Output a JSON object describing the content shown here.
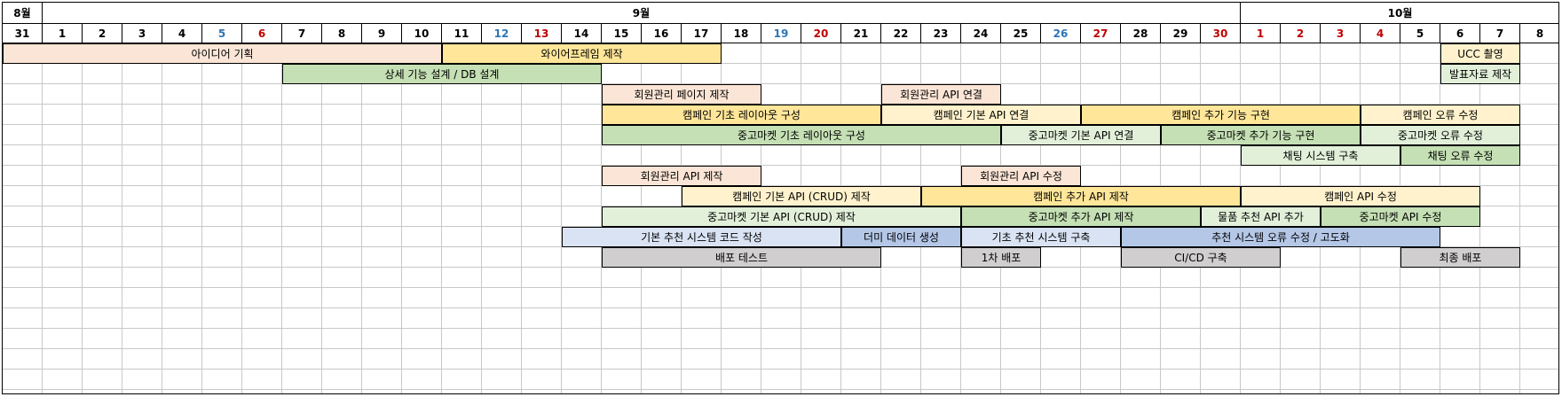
{
  "months": [
    {
      "label": "8월",
      "start": 0,
      "span": 1
    },
    {
      "label": "9월",
      "start": 1,
      "span": 30
    },
    {
      "label": "10월",
      "start": 31,
      "span": 8
    }
  ],
  "days": [
    {
      "label": "31",
      "type": "weekday"
    },
    {
      "label": "1",
      "type": "weekday"
    },
    {
      "label": "2",
      "type": "weekday"
    },
    {
      "label": "3",
      "type": "weekday"
    },
    {
      "label": "4",
      "type": "weekday"
    },
    {
      "label": "5",
      "type": "sat"
    },
    {
      "label": "6",
      "type": "sun"
    },
    {
      "label": "7",
      "type": "weekday"
    },
    {
      "label": "8",
      "type": "weekday"
    },
    {
      "label": "9",
      "type": "weekday"
    },
    {
      "label": "10",
      "type": "weekday"
    },
    {
      "label": "11",
      "type": "weekday"
    },
    {
      "label": "12",
      "type": "sat"
    },
    {
      "label": "13",
      "type": "sun"
    },
    {
      "label": "14",
      "type": "weekday"
    },
    {
      "label": "15",
      "type": "weekday"
    },
    {
      "label": "16",
      "type": "weekday"
    },
    {
      "label": "17",
      "type": "weekday"
    },
    {
      "label": "18",
      "type": "weekday"
    },
    {
      "label": "19",
      "type": "sat"
    },
    {
      "label": "20",
      "type": "sun"
    },
    {
      "label": "21",
      "type": "weekday"
    },
    {
      "label": "22",
      "type": "weekday"
    },
    {
      "label": "23",
      "type": "weekday"
    },
    {
      "label": "24",
      "type": "weekday"
    },
    {
      "label": "25",
      "type": "weekday"
    },
    {
      "label": "26",
      "type": "sat"
    },
    {
      "label": "27",
      "type": "sun"
    },
    {
      "label": "28",
      "type": "weekday"
    },
    {
      "label": "29",
      "type": "weekday"
    },
    {
      "label": "30",
      "type": "sun"
    },
    {
      "label": "1",
      "type": "sun"
    },
    {
      "label": "2",
      "type": "sun"
    },
    {
      "label": "3",
      "type": "sun"
    },
    {
      "label": "4",
      "type": "sun"
    },
    {
      "label": "5",
      "type": "weekday"
    },
    {
      "label": "6",
      "type": "weekday"
    },
    {
      "label": "7",
      "type": "weekday"
    },
    {
      "label": "8",
      "type": "weekday"
    }
  ],
  "colors": {
    "peach": "#fbe5d6",
    "yellow": "#ffe699",
    "light_yellow": "#fff2cc",
    "green": "#c5e0b4",
    "light_green": "#e2f0d9",
    "light_blue": "#dae3f3",
    "blue": "#b4c7e7",
    "gray": "#d0cece",
    "weekend_blue": "#2e75b6",
    "weekend_red": "#c00000"
  },
  "tasks": [
    {
      "label": "아이디어 기획",
      "row": 0,
      "start": 0,
      "end": 11,
      "color": "#fbe5d6"
    },
    {
      "label": "와이어프레임 제작",
      "row": 0,
      "start": 11,
      "end": 18,
      "color": "#ffe699"
    },
    {
      "label": "UCC 촬영",
      "row": 0,
      "start": 36,
      "end": 38,
      "color": "#fff2cc"
    },
    {
      "label": "상세 기능 설계 / DB 설계",
      "row": 1,
      "start": 7,
      "end": 15,
      "color": "#c5e0b4"
    },
    {
      "label": "발표자료 제작",
      "row": 1,
      "start": 36,
      "end": 38,
      "color": "#e2f0d9"
    },
    {
      "label": "회원관리 페이지 제작",
      "row": 2,
      "start": 15,
      "end": 19,
      "color": "#fbe5d6"
    },
    {
      "label": "회원관리 API 연결",
      "row": 2,
      "start": 22,
      "end": 25,
      "color": "#fbe5d6"
    },
    {
      "label": "캠페인 기초 레이아웃 구성",
      "row": 3,
      "start": 15,
      "end": 22,
      "color": "#ffe699"
    },
    {
      "label": "캠페인 기본 API 연결",
      "row": 3,
      "start": 22,
      "end": 27,
      "color": "#fff2cc"
    },
    {
      "label": "캠페인 추가 기능 구현",
      "row": 3,
      "start": 27,
      "end": 34,
      "color": "#ffe699"
    },
    {
      "label": "캠페인 오류 수정",
      "row": 3,
      "start": 34,
      "end": 38,
      "color": "#fff2cc"
    },
    {
      "label": "중고마켓 기초 레이아웃 구성",
      "row": 4,
      "start": 15,
      "end": 25,
      "color": "#c5e0b4"
    },
    {
      "label": "중고마켓 기본 API 연결",
      "row": 4,
      "start": 25,
      "end": 29,
      "color": "#e2f0d9"
    },
    {
      "label": "중고마켓 추가 기능 구현",
      "row": 4,
      "start": 29,
      "end": 34,
      "color": "#c5e0b4"
    },
    {
      "label": "중고마켓 오류 수정",
      "row": 4,
      "start": 34,
      "end": 38,
      "color": "#e2f0d9"
    },
    {
      "label": "채팅 시스템 구축",
      "row": 5,
      "start": 31,
      "end": 35,
      "color": "#e2f0d9"
    },
    {
      "label": "채팅 오류 수정",
      "row": 5,
      "start": 35,
      "end": 38,
      "color": "#c5e0b4"
    },
    {
      "label": "회원관리 API 제작",
      "row": 6,
      "start": 15,
      "end": 19,
      "color": "#fbe5d6"
    },
    {
      "label": "회원관리 API 수정",
      "row": 6,
      "start": 24,
      "end": 27,
      "color": "#fbe5d6"
    },
    {
      "label": "캠페인 기본 API (CRUD) 제작",
      "row": 7,
      "start": 17,
      "end": 23,
      "color": "#fff2cc"
    },
    {
      "label": "캠페인 추가 API 제작",
      "row": 7,
      "start": 23,
      "end": 31,
      "color": "#ffe699"
    },
    {
      "label": "캠페인 API 수정",
      "row": 7,
      "start": 31,
      "end": 37,
      "color": "#fff2cc"
    },
    {
      "label": "중고마켓 기본 API (CRUD) 제작",
      "row": 8,
      "start": 15,
      "end": 24,
      "color": "#e2f0d9"
    },
    {
      "label": "중고마켓 추가 API 제작",
      "row": 8,
      "start": 24,
      "end": 30,
      "color": "#c5e0b4"
    },
    {
      "label": "물품 추천 API 추가",
      "row": 8,
      "start": 30,
      "end": 33,
      "color": "#e2f0d9"
    },
    {
      "label": "중고마켓 API 수정",
      "row": 8,
      "start": 33,
      "end": 37,
      "color": "#c5e0b4"
    },
    {
      "label": "기본 추천 시스템 코드 작성",
      "row": 9,
      "start": 14,
      "end": 21,
      "color": "#dae3f3"
    },
    {
      "label": "더미 데이터 생성",
      "row": 9,
      "start": 21,
      "end": 24,
      "color": "#b4c7e7"
    },
    {
      "label": "기초 추천 시스템 구축",
      "row": 9,
      "start": 24,
      "end": 28,
      "color": "#dae3f3"
    },
    {
      "label": "추천 시스템 오류 수정 / 고도화",
      "row": 9,
      "start": 28,
      "end": 36,
      "color": "#b4c7e7"
    },
    {
      "label": "배포 테스트",
      "row": 10,
      "start": 15,
      "end": 22,
      "color": "#d0cece"
    },
    {
      "label": "1차 배포",
      "row": 10,
      "start": 24,
      "end": 26,
      "color": "#d0cece"
    },
    {
      "label": "CI/CD 구축",
      "row": 10,
      "start": 28,
      "end": 32,
      "color": "#d0cece"
    },
    {
      "label": "최종 배포",
      "row": 10,
      "start": 35,
      "end": 38,
      "color": "#d0cece"
    }
  ]
}
